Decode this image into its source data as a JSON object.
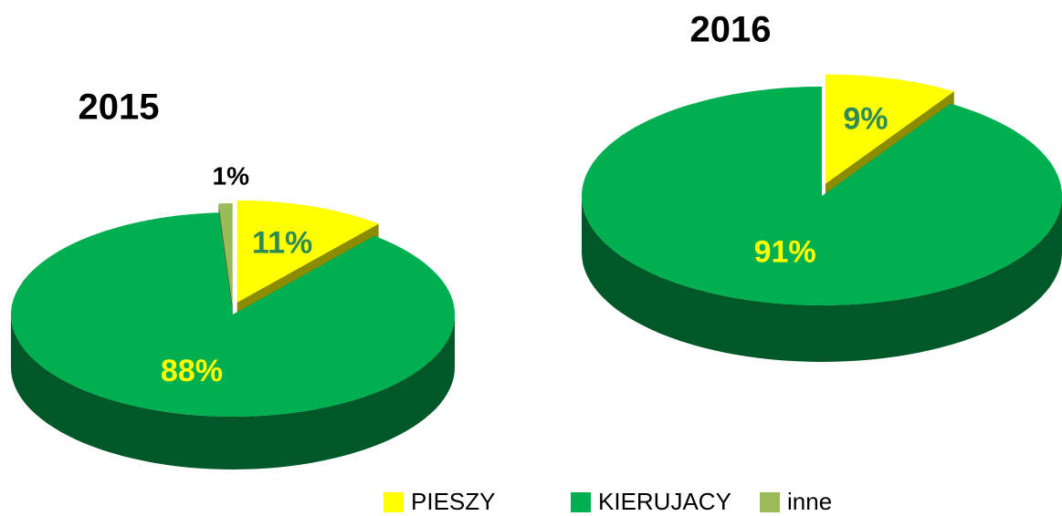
{
  "legend": {
    "labels": [
      "PIESZY",
      "KIERUJACY",
      "inne"
    ],
    "colors": [
      "#ffff00",
      "#00b050",
      "#9bbb59"
    ]
  },
  "chart_data": [
    {
      "type": "pie",
      "title": "2015",
      "values": [
        11,
        88,
        1
      ],
      "value_labels": [
        "11%",
        "88%",
        "1%"
      ]
    },
    {
      "type": "pie",
      "title": "2016",
      "values": [
        9,
        91
      ],
      "value_labels": [
        "9%",
        "91%"
      ]
    }
  ]
}
